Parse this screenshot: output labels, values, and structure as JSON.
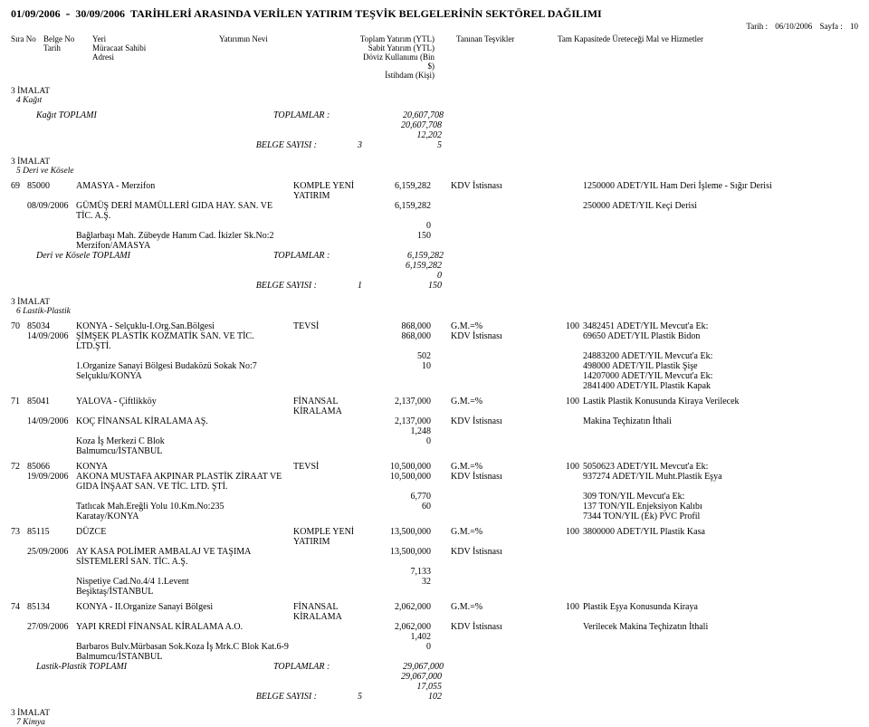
{
  "header": {
    "date_from": "01/09/2006",
    "dash": "-",
    "date_to": "30/09/2006",
    "title": "TARİHLERİ ARASINDA VERİLEN YATIRIM TEŞVİK BELGELERİNİN SEKTÖREL DAĞILIMI",
    "print_date_label": "Tarih :",
    "print_date": "06/10/2006",
    "page_label": "Sayfa :",
    "page": "10"
  },
  "columns": {
    "c1a": "Sıra No",
    "c2a": "Belge No",
    "c2b": "Tarih",
    "c3a": "Yeri",
    "c3b": "Müracaat Sahibi",
    "c3c": "Adresi",
    "c4a": "Yatırımın Nevi",
    "c5a": "Toplam Yatırım (YTL)",
    "c5b": "Sabit Yatırım (YTL)",
    "c5c": "Döviz Kullanımı (Bin $)",
    "c5d": "İstihdam (Kişi)",
    "c6a": "Tanınan Teşvikler",
    "c7a": "Tam Kapasitede Üreteceği Mal ve Hizmetler"
  },
  "sec3_label": "3  İMALAT",
  "sec3_sub4": "4  Kağıt",
  "kagit_totals": {
    "name": "Kağıt TOPLAMI",
    "toplamlar": "TOPLAMLAR :",
    "v1": "20,607,708",
    "v2": "20,607,708",
    "v3": "12,202",
    "v4": "5",
    "belge_label": "BELGE SAYISI :",
    "belge_n": "3"
  },
  "sec3_sub5": "5  Deri ve Kösele",
  "e69": {
    "sira": "69",
    "belge": "85000",
    "tarih": "08/09/2006",
    "yeri": "AMASYA - Merzifon",
    "nevi": "KOMPLE YENİ YATIRIM",
    "firma": "GÜMÜŞ DERİ MAMÜLLERİ GIDA HAY. SAN. VE TİC. A.Ş.",
    "addr1": "Bağlarbaşı Mah. Zübeyde Hanım Cad. İkizler Sk.No:2",
    "addr2": "Merzifon/AMASYA",
    "v1": "6,159,282",
    "v2": "6,159,282",
    "v3": "0",
    "v4": "150",
    "tesvik": "KDV İstisnası",
    "mal1": "1250000 ADET/YIL Ham Deri İşleme - Sığır Derisi",
    "mal2": "250000 ADET/YIL Keçi Derisi"
  },
  "deri_totals": {
    "name": "Deri ve Kösele TOPLAMI",
    "toplamlar": "TOPLAMLAR :",
    "v1": "6,159,282",
    "v2": "6,159,282",
    "v3": "0",
    "v4": "150",
    "belge_label": "BELGE SAYISI :",
    "belge_n": "1"
  },
  "sec3_sub6": "6  Lastik-Plastik",
  "e70": {
    "sira": "70",
    "belge": "85034",
    "tarih": "14/09/2006",
    "yeri": "KONYA - Selçuklu-I.Org.San.Bölgesi",
    "nevi": "TEVSİ",
    "firma": "ŞİMŞEK PLASTİK KOZMATİK SAN. VE TİC. LTD.ŞTİ.",
    "addr1": "1.Organize Sanayi Bölgesi Budaközü Sokak No:7",
    "addr2": "Selçuklu/KONYA",
    "v1": "868,000",
    "v2": "868,000",
    "v3": "502",
    "v4": "10",
    "tesvik1": "G.M.=%",
    "kap": "100",
    "tesvik2": "KDV İstisnası",
    "mal1": "3482451 ADET/YIL Mevcut'a Ek:",
    "mal2": "69650 ADET/YIL Plastik Bidon",
    "mal3": "24883200 ADET/YIL Mevcut'a Ek:",
    "mal4": "498000 ADET/YIL Plastik Şişe",
    "mal5": "14207000 ADET/YIL Mevcut'a Ek:",
    "mal6": "2841400 ADET/YIL Plastik Kapak"
  },
  "e71": {
    "sira": "71",
    "belge": "85041",
    "tarih": "14/09/2006",
    "yeri": "YALOVA - Çiftlikköy",
    "nevi": "FİNANSAL KİRALAMA",
    "firma": "KOÇ FİNANSAL KİRALAMA AŞ.",
    "addr1": "Koza İş Merkezi C Blok",
    "addr2": "Balmumcu/İSTANBUL",
    "v1": "2,137,000",
    "v2": "2,137,000",
    "v3": "1,248",
    "v4": "0",
    "tesvik1": "G.M.=%",
    "kap": "100",
    "tesvik2": "KDV İstisnası",
    "mal1": "Lastik Plastik Konusunda Kiraya Verilecek",
    "mal2": "Makina Teçhizatın İthali"
  },
  "e72": {
    "sira": "72",
    "belge": "85066",
    "tarih": "19/09/2006",
    "yeri": "KONYA",
    "nevi": "TEVSİ",
    "firma": "AKONA MUSTAFA AKPINAR PLASTİK ZİRAAT VE GIDA İNŞAAT SAN. VE TİC. LTD. ŞTİ.",
    "addr1": "Tatlıcak Mah.Ereğli Yolu 10.Km.No:235",
    "addr2": "Karatay/KONYA",
    "v1": "10,500,000",
    "v2": "10,500,000",
    "v3": "6,770",
    "v4": "60",
    "tesvik1": "G.M.=%",
    "kap": "100",
    "tesvik2": "KDV İstisnası",
    "mal1": "5050623 ADET/YIL Mevcut'a Ek:",
    "mal2": "937274 ADET/YIL Muht.Plastik Eşya",
    "mal3": "309 TON/YIL Mevcut'a Ek:",
    "mal4": "137 TON/YIL Enjeksiyon Kalıbı",
    "mal5": "7344 TON/YIL (Ek) PVC Profil"
  },
  "e73": {
    "sira": "73",
    "belge": "85115",
    "tarih": "25/09/2006",
    "yeri": "DÜZCE",
    "nevi": "KOMPLE YENİ YATIRIM",
    "firma": "AY KASA POLİMER AMBALAJ VE TAŞIMA SİSTEMLERİ SAN. TİC. A.Ş.",
    "addr1": "Nispetiye Cad.No.4/4 1.Levent",
    "addr2": "Beşiktaş/İSTANBUL",
    "v1": "13,500,000",
    "v2": "13,500,000",
    "v3": "7,133",
    "v4": "32",
    "tesvik1": "G.M.=%",
    "kap": "100",
    "tesvik2": "KDV İstisnası",
    "mal1": "3800000 ADET/YIL Plastik Kasa"
  },
  "e74": {
    "sira": "74",
    "belge": "85134",
    "tarih": "27/09/2006",
    "yeri": "KONYA - II.Organize Sanayi Bölgesi",
    "nevi": "FİNANSAL KİRALAMA",
    "firma": "YAPI KREDİ FİNANSAL KİRALAMA A.O.",
    "addr1": "Barbaros Bulv.Mürbasan Sok.Koza İş Mrk.C Blok Kat.6-9",
    "addr2": "Balmumcu/İSTANBUL",
    "v1": "2,062,000",
    "v2": "2,062,000",
    "v3": "1,402",
    "v4": "0",
    "tesvik1": "G.M.=%",
    "kap": "100",
    "tesvik2": "KDV İstisnası",
    "mal1": "Plastik Eşya Konusunda Kiraya",
    "mal2": "Verilecek Makina Teçhizatın İthali"
  },
  "lastik_totals": {
    "name": "Lastik-Plastik TOPLAMI",
    "toplamlar": "TOPLAMLAR :",
    "v1": "29,067,000",
    "v2": "29,067,000",
    "v3": "17,055",
    "v4": "102",
    "belge_label": "BELGE SAYISI :",
    "belge_n": "5"
  },
  "sec3_sub7": "7  Kimya"
}
